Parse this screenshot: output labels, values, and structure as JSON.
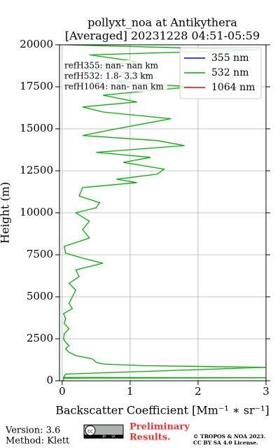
{
  "chart_data": {
    "type": "line",
    "title": [
      "pollyxt_noa at Antikythera",
      "[Averaged] 20231228 04:51-05:59"
    ],
    "x_label": "Backscatter Coefficient [Mm⁻¹ ∗ sr⁻¹]",
    "y_label": "Height (m)",
    "y": [
      0,
      160,
      180,
      200,
      400,
      800,
      900,
      1000,
      1100,
      1300,
      1500,
      1700,
      1900,
      2100,
      2300,
      2500,
      2800,
      3100,
      3400,
      3700,
      4000,
      4300,
      4600,
      5000,
      5400,
      5800,
      6200,
      6600,
      7000,
      7300,
      7600,
      8000,
      8500,
      9000,
      9500,
      10000,
      10300,
      10600,
      11000,
      11500,
      11800,
      12000,
      12300,
      12600,
      13000,
      13300,
      13600,
      14000,
      14300,
      14600,
      15000,
      15300,
      15600,
      16000,
      16300,
      16600,
      17000,
      17500,
      17800,
      18200,
      18600,
      19000,
      19400,
      19700,
      20000
    ],
    "series": [
      {
        "name": "355 nm",
        "color": "#0000ff",
        "values": [
          null,
          null,
          null,
          null,
          null,
          null,
          null,
          null,
          null,
          null,
          null,
          null,
          null,
          null,
          null,
          null,
          null,
          null,
          null,
          null,
          null,
          null,
          null,
          null,
          null,
          null,
          null,
          null,
          null,
          null,
          null,
          null,
          null,
          null,
          null,
          null,
          null,
          null,
          null,
          null,
          null,
          null,
          null,
          null,
          null,
          null,
          null,
          null,
          null,
          null,
          null,
          null,
          null,
          null,
          null,
          null,
          null,
          null,
          null,
          null,
          null,
          null,
          null,
          null,
          null
        ]
      },
      {
        "name": "532 nm",
        "color": "#00b000",
        "values": [
          0.02,
          0.02,
          3,
          0.02,
          0.05,
          3,
          1.2,
          0.6,
          0.5,
          0.45,
          0.2,
          0.1,
          0.05,
          0.1,
          0.05,
          0.02,
          0.03,
          0.1,
          0.03,
          0.05,
          0.02,
          0.15,
          0.1,
          0.15,
          0.2,
          0.1,
          0.25,
          0.2,
          0.6,
          0.3,
          0.05,
          0.03,
          0.4,
          0.3,
          0.4,
          0.2,
          0.5,
          0.55,
          0.25,
          0.3,
          1.1,
          0.8,
          1.4,
          1.5,
          0.9,
          1.3,
          0.5,
          1.8,
          1.4,
          0.3,
          0.8,
          1.2,
          1.6,
          0.6,
          0.3,
          1.1,
          0.6,
          1.9,
          0.8,
          1.3,
          0.3,
          1.1,
          0.4,
          2.9,
          0.05
        ]
      },
      {
        "name": "1064 nm",
        "color": "#ff0000",
        "values": [
          null,
          null,
          null,
          null,
          null,
          null,
          null,
          null,
          null,
          null,
          null,
          null,
          null,
          null,
          null,
          null,
          null,
          null,
          null,
          null,
          null,
          null,
          null,
          null,
          null,
          null,
          null,
          null,
          null,
          null,
          null,
          null,
          null,
          null,
          null,
          null,
          null,
          null,
          null,
          null,
          null,
          null,
          null,
          null,
          null,
          null,
          null,
          null,
          null,
          null,
          null,
          null,
          null,
          null,
          null,
          null,
          null,
          null,
          null,
          null,
          null,
          null,
          null,
          null,
          null
        ]
      }
    ],
    "xlim": [
      -0.04,
      3
    ],
    "xticks": [
      0,
      1,
      2,
      3
    ],
    "ylim": [
      0,
      20000
    ],
    "yticks": [
      0,
      2500,
      5000,
      7500,
      10000,
      12500,
      15000,
      17500,
      20000
    ],
    "grid": true,
    "legend_position": "upper right",
    "annotations": [
      "refH355:  nan- nan km",
      "refH532:  1.8- 3.3 km",
      "refH1064:  nan- nan km"
    ]
  },
  "footer": {
    "version": "Version: 3.6",
    "method": "Method: Klett",
    "badge": [
      "cc",
      "BY",
      "SA"
    ],
    "preliminary": [
      "Preliminary",
      "Results."
    ],
    "copyright": [
      "© TROPOS & NOA 2023.",
      "CC BY SA 4.0 License."
    ]
  }
}
